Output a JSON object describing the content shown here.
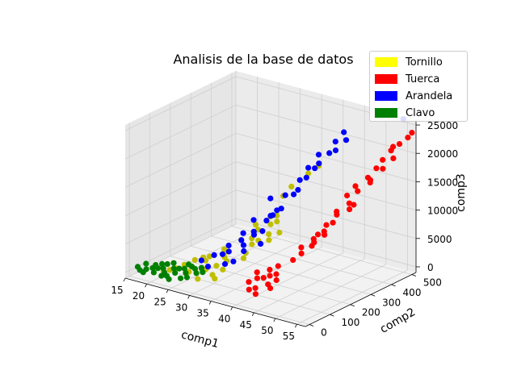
{
  "chart_data": {
    "type": "scatter",
    "projection": "3d",
    "title": "Analisis de la base de datos",
    "xlabel": "comp1",
    "ylabel": "comp2",
    "zlabel": "comp3",
    "xlim": [
      15,
      57
    ],
    "ylim": [
      -20,
      520
    ],
    "zlim": [
      -1000,
      26000
    ],
    "xticks": [
      15,
      20,
      25,
      30,
      35,
      40,
      45,
      50,
      55
    ],
    "yticks": [
      0,
      100,
      200,
      300,
      400,
      500
    ],
    "zticks": [
      0,
      5000,
      10000,
      15000,
      20000,
      25000
    ],
    "grid": true,
    "legend_position": "top-right",
    "series": [
      {
        "name": "Tornillo",
        "color": "#ffff00",
        "marker_color": "#bfbf00",
        "points": [
          [
            22,
            20,
            1000
          ],
          [
            24,
            40,
            1500
          ],
          [
            25,
            60,
            2000
          ],
          [
            26,
            90,
            2500
          ],
          [
            27,
            40,
            1500
          ],
          [
            28,
            120,
            3000
          ],
          [
            29,
            60,
            2000
          ],
          [
            30,
            150,
            3500
          ],
          [
            31,
            90,
            2500
          ],
          [
            32,
            120,
            3000
          ],
          [
            33,
            40,
            1500
          ],
          [
            34,
            160,
            3200
          ],
          [
            23,
            30,
            1200
          ],
          [
            26,
            70,
            1800
          ],
          [
            28,
            100,
            2600
          ],
          [
            30,
            60,
            2200
          ],
          [
            31,
            130,
            3300
          ],
          [
            33,
            80,
            2400
          ],
          [
            29,
            170,
            3600
          ],
          [
            27,
            110,
            2800
          ],
          [
            35,
            150,
            4500
          ],
          [
            34,
            200,
            6000
          ],
          [
            36,
            250,
            8000
          ],
          [
            35,
            180,
            5500
          ],
          [
            37,
            220,
            7000
          ],
          [
            33,
            240,
            7500
          ],
          [
            36,
            280,
            9000
          ],
          [
            38,
            200,
            6500
          ],
          [
            34,
            230,
            7000
          ],
          [
            37,
            260,
            8500
          ],
          [
            32,
            190,
            5500
          ],
          [
            35,
            270,
            8800
          ],
          [
            36,
            190,
            6200
          ],
          [
            39,
            230,
            7500
          ],
          [
            38,
            310,
            14000
          ],
          [
            37,
            290,
            12500
          ],
          [
            40,
            350,
            16000
          ],
          [
            41,
            380,
            17000
          ],
          [
            30,
            20,
            1200
          ],
          [
            32,
            50,
            1800
          ]
        ]
      },
      {
        "name": "Tuerca",
        "color": "#ff0000",
        "marker_color": "#ff0000",
        "points": [
          [
            40,
            60,
            2000
          ],
          [
            41,
            80,
            2500
          ],
          [
            42,
            50,
            1500
          ],
          [
            43,
            100,
            3000
          ],
          [
            44,
            70,
            2200
          ],
          [
            42,
            120,
            3500
          ],
          [
            45,
            90,
            2800
          ],
          [
            41,
            40,
            1200
          ],
          [
            43,
            30,
            1000
          ],
          [
            44,
            110,
            3300
          ],
          [
            42,
            90,
            2600
          ],
          [
            45,
            60,
            1900
          ],
          [
            40,
            100,
            3000
          ],
          [
            43,
            140,
            4000
          ],
          [
            46,
            150,
            5500
          ],
          [
            47,
            170,
            6500
          ],
          [
            48,
            200,
            7500
          ],
          [
            49,
            190,
            8500
          ],
          [
            50,
            220,
            9500
          ],
          [
            47,
            230,
            8000
          ],
          [
            49,
            250,
            10500
          ],
          [
            51,
            240,
            11500
          ],
          [
            50,
            280,
            12000
          ],
          [
            52,
            300,
            13000
          ],
          [
            48,
            260,
            9000
          ],
          [
            51,
            320,
            13500
          ],
          [
            53,
            300,
            14000
          ],
          [
            52,
            340,
            15500
          ],
          [
            53,
            380,
            16500
          ],
          [
            54,
            360,
            17500
          ],
          [
            55,
            400,
            19000
          ],
          [
            54,
            420,
            20000
          ],
          [
            55,
            440,
            21500
          ],
          [
            56,
            460,
            22500
          ],
          [
            57,
            480,
            23500
          ],
          [
            56,
            430,
            20500
          ],
          [
            53,
            410,
            18500
          ],
          [
            52,
            390,
            17000
          ],
          [
            50,
            330,
            14500
          ],
          [
            55,
            450,
            22000
          ],
          [
            57,
            500,
            24000
          ],
          [
            51,
            350,
            16000
          ],
          [
            49,
            300,
            12000
          ],
          [
            46,
            190,
            7000
          ],
          [
            48,
            230,
            9000
          ]
        ]
      },
      {
        "name": "Arandela",
        "color": "#0000ff",
        "marker_color": "#0000ff",
        "points": [
          [
            28,
            80,
            3000
          ],
          [
            30,
            100,
            4000
          ],
          [
            31,
            150,
            5000
          ],
          [
            32,
            130,
            4500
          ],
          [
            33,
            170,
            6000
          ],
          [
            34,
            110,
            3500
          ],
          [
            35,
            190,
            7000
          ],
          [
            33,
            90,
            3200
          ],
          [
            32,
            200,
            6500
          ],
          [
            34,
            160,
            5500
          ],
          [
            36,
            210,
            7500
          ],
          [
            35,
            140,
            5000
          ],
          [
            37,
            180,
            6000
          ],
          [
            33,
            230,
            8500
          ],
          [
            36,
            250,
            9500
          ],
          [
            37,
            240,
            10000
          ],
          [
            38,
            260,
            11000
          ],
          [
            35,
            270,
            12000
          ],
          [
            38,
            280,
            13000
          ],
          [
            40,
            300,
            14000
          ],
          [
            39,
            330,
            15000
          ],
          [
            41,
            320,
            16000
          ],
          [
            40,
            350,
            17000
          ],
          [
            42,
            360,
            18000
          ],
          [
            41,
            380,
            19000
          ],
          [
            43,
            390,
            19500
          ],
          [
            44,
            400,
            20000
          ],
          [
            43,
            420,
            21000
          ],
          [
            45,
            430,
            21500
          ],
          [
            44,
            440,
            22500
          ],
          [
            39,
            300,
            13000
          ],
          [
            36,
            230,
            9000
          ],
          [
            31,
            120,
            4000
          ],
          [
            30,
            70,
            2500
          ],
          [
            34,
            210,
            7000
          ],
          [
            37,
            260,
            10500
          ],
          [
            42,
            340,
            17500
          ],
          [
            55,
            500,
            26000
          ]
        ]
      },
      {
        "name": "Clavo",
        "color": "#008000",
        "marker_color": "#008000",
        "points": [
          [
            17,
            10,
            300
          ],
          [
            18,
            20,
            500
          ],
          [
            19,
            30,
            700
          ],
          [
            20,
            15,
            400
          ],
          [
            21,
            40,
            900
          ],
          [
            22,
            25,
            600
          ],
          [
            23,
            50,
            1100
          ],
          [
            24,
            35,
            800
          ],
          [
            25,
            60,
            1300
          ],
          [
            26,
            45,
            1000
          ],
          [
            27,
            70,
            1500
          ],
          [
            28,
            55,
            1200
          ],
          [
            18,
            5,
            200
          ],
          [
            20,
            35,
            800
          ],
          [
            22,
            10,
            300
          ],
          [
            24,
            55,
            1200
          ],
          [
            26,
            20,
            500
          ],
          [
            28,
            80,
            1700
          ],
          [
            19,
            45,
            1000
          ],
          [
            21,
            60,
            1300
          ],
          [
            23,
            15,
            400
          ],
          [
            25,
            80,
            1700
          ],
          [
            27,
            30,
            700
          ],
          [
            29,
            65,
            1400
          ],
          [
            16,
            20,
            500
          ],
          [
            17,
            40,
            900
          ],
          [
            20,
            55,
            1200
          ],
          [
            22,
            70,
            1500
          ],
          [
            24,
            5,
            200
          ],
          [
            26,
            75,
            1600
          ]
        ]
      }
    ]
  }
}
